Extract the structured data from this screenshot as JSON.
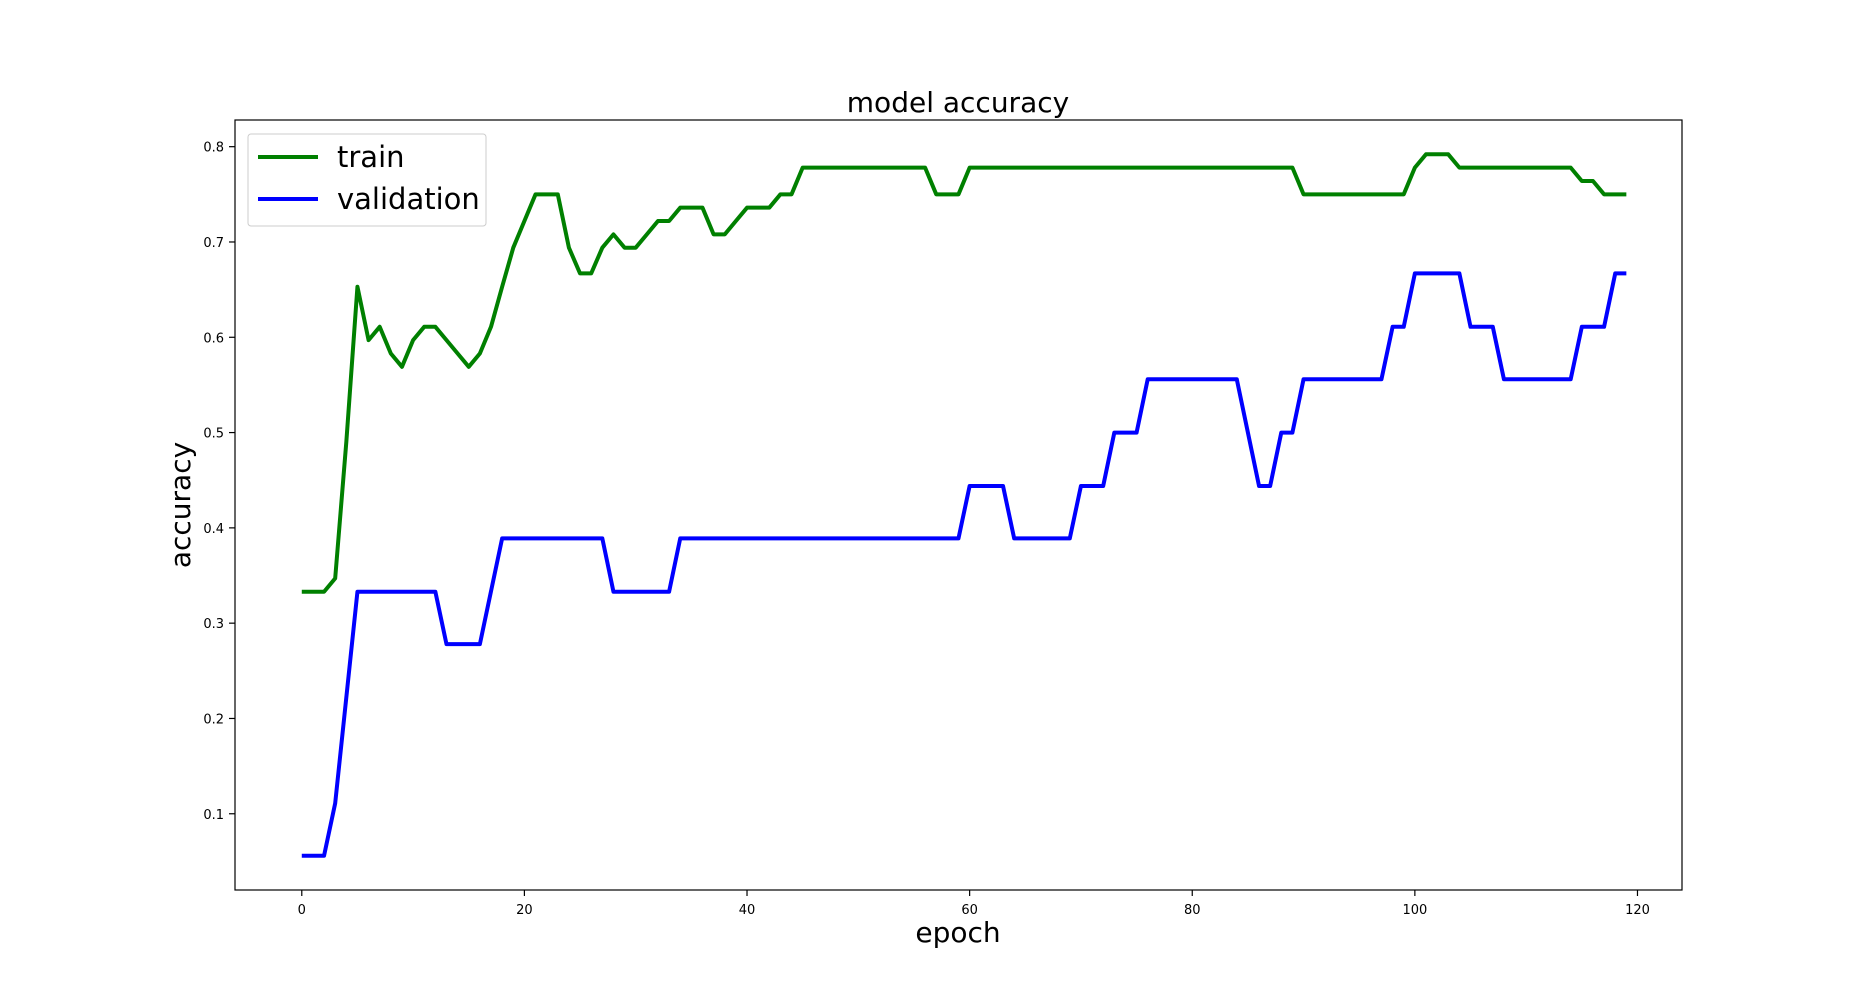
{
  "chart_data": {
    "type": "line",
    "title": "model accuracy",
    "xlabel": "epoch",
    "ylabel": "accuracy",
    "xlim": [
      -6,
      124
    ],
    "ylim": [
      0.02,
      0.828
    ],
    "xticks": [
      0,
      20,
      40,
      60,
      80,
      100,
      120
    ],
    "yticks": [
      0.1,
      0.2,
      0.3,
      0.4,
      0.5,
      0.6,
      0.7,
      0.8
    ],
    "grid": false,
    "legend_position": "upper left",
    "series": [
      {
        "name": "train",
        "color": "#008000",
        "x": [
          0,
          2,
          3,
          4,
          5,
          6,
          7,
          8,
          9,
          10,
          11,
          12,
          13,
          14,
          15,
          16,
          17,
          18,
          19,
          20,
          21,
          22,
          23,
          24,
          25,
          26,
          27,
          28,
          29,
          30,
          31,
          32,
          33,
          34,
          35,
          36,
          37,
          38,
          39,
          40,
          41,
          42,
          43,
          44,
          45,
          56,
          57,
          58,
          59,
          60,
          89,
          90,
          99,
          100,
          101,
          102,
          103,
          104,
          114,
          115,
          116,
          117,
          118,
          119
        ],
        "values": [
          0.333,
          0.333,
          0.347,
          0.49,
          0.653,
          0.597,
          0.611,
          0.583,
          0.569,
          0.597,
          0.611,
          0.611,
          0.597,
          0.583,
          0.569,
          0.583,
          0.611,
          0.653,
          0.694,
          0.722,
          0.75,
          0.75,
          0.75,
          0.694,
          0.667,
          0.667,
          0.694,
          0.708,
          0.694,
          0.694,
          0.708,
          0.722,
          0.722,
          0.736,
          0.736,
          0.736,
          0.708,
          0.708,
          0.722,
          0.736,
          0.736,
          0.736,
          0.75,
          0.75,
          0.778,
          0.778,
          0.75,
          0.75,
          0.75,
          0.778,
          0.778,
          0.75,
          0.75,
          0.778,
          0.792,
          0.792,
          0.792,
          0.778,
          0.778,
          0.764,
          0.764,
          0.75,
          0.75,
          0.75
        ]
      },
      {
        "name": "validation",
        "color": "#0000ff",
        "x": [
          0,
          2,
          3,
          5,
          12,
          13,
          16,
          18,
          27,
          28,
          33,
          34,
          59,
          60,
          63,
          64,
          69,
          70,
          72,
          73,
          75,
          76,
          84,
          86,
          87,
          88,
          89,
          90,
          97,
          98,
          99,
          100,
          104,
          105,
          107,
          108,
          114,
          115,
          117,
          118,
          119
        ],
        "values": [
          0.056,
          0.056,
          0.111,
          0.333,
          0.333,
          0.278,
          0.278,
          0.389,
          0.389,
          0.333,
          0.333,
          0.389,
          0.389,
          0.444,
          0.444,
          0.389,
          0.389,
          0.444,
          0.444,
          0.5,
          0.5,
          0.556,
          0.556,
          0.444,
          0.444,
          0.5,
          0.5,
          0.556,
          0.556,
          0.611,
          0.611,
          0.667,
          0.667,
          0.611,
          0.611,
          0.556,
          0.556,
          0.611,
          0.611,
          0.667,
          0.667
        ]
      }
    ]
  }
}
